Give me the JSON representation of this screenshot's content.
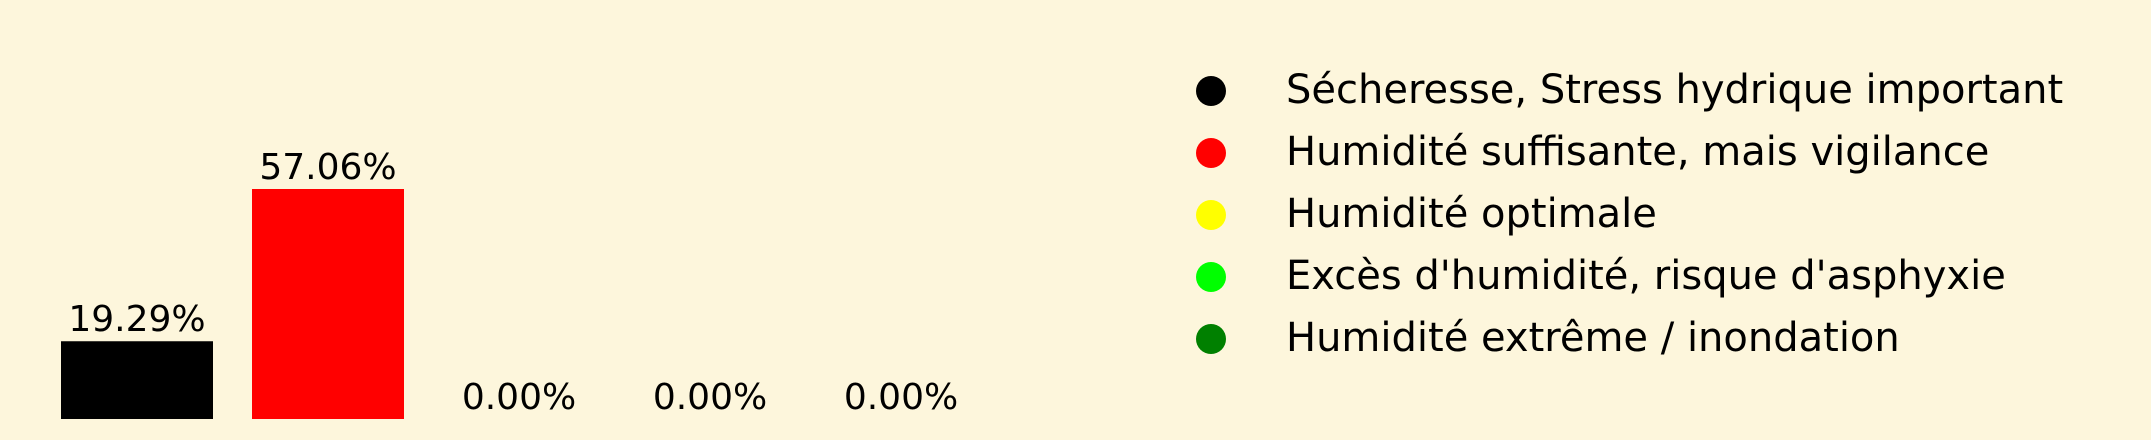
{
  "chart_data": {
    "type": "bar",
    "title": "",
    "xlabel": "",
    "ylabel": "",
    "ylim": [
      0,
      65
    ],
    "grid": false,
    "legend_placement": "right",
    "categories": [
      "Sécheresse, Stress hydrique important",
      "Humidité suffisante, mais vigilance",
      "Humidité optimale",
      "Excès d'humidité, risque d'asphyxie",
      "Humidité extrême / inondation"
    ],
    "values": [
      19.29,
      57.06,
      0.0,
      0.0,
      0.0
    ],
    "value_labels": [
      "19.29%",
      "57.06%",
      "0.00%",
      "0.00%",
      "0.00%"
    ],
    "colors": [
      "#000000",
      "#ff0000",
      "#ffff00",
      "#00ff00",
      "#008000"
    ],
    "legend": [
      {
        "label": "Sécheresse, Stress hydrique important",
        "color": "#000000"
      },
      {
        "label": "Humidité suffisante, mais vigilance",
        "color": "#ff0000"
      },
      {
        "label": "Humidité optimale",
        "color": "#ffff00"
      },
      {
        "label": "Excès d'humidité, risque d'asphyxie",
        "color": "#00ff00"
      },
      {
        "label": "Humidité extrême / inondation",
        "color": "#008000"
      }
    ]
  },
  "background_color": "#fdf6dc"
}
